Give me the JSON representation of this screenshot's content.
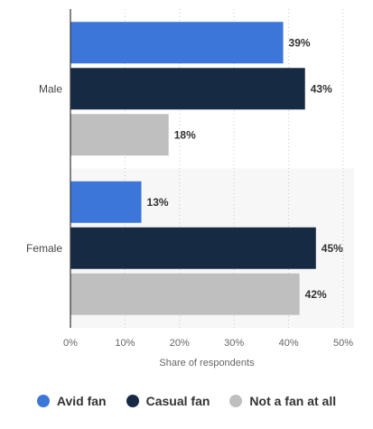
{
  "chart_data": {
    "type": "bar",
    "orientation": "horizontal",
    "categories": [
      "Male",
      "Female"
    ],
    "series": [
      {
        "name": "Avid fan",
        "values": [
          39,
          13
        ],
        "color": "#3d76d9"
      },
      {
        "name": "Casual fan",
        "values": [
          43,
          45
        ],
        "color": "#172a44"
      },
      {
        "name": "Not a fan at all",
        "values": [
          18,
          42
        ],
        "color": "#bfbfbf"
      }
    ],
    "value_labels": [
      [
        "39%",
        "13%"
      ],
      [
        "43%",
        "45%"
      ],
      [
        "18%",
        "42%"
      ]
    ],
    "xlabel": "Share of respondents",
    "xlim": [
      0,
      50
    ],
    "x_ticks": [
      0,
      10,
      20,
      30,
      40,
      50
    ],
    "x_tick_labels": [
      "0%",
      "10%",
      "20%",
      "30%",
      "40%",
      "50%"
    ],
    "grid": true,
    "legend_position": "bottom"
  }
}
